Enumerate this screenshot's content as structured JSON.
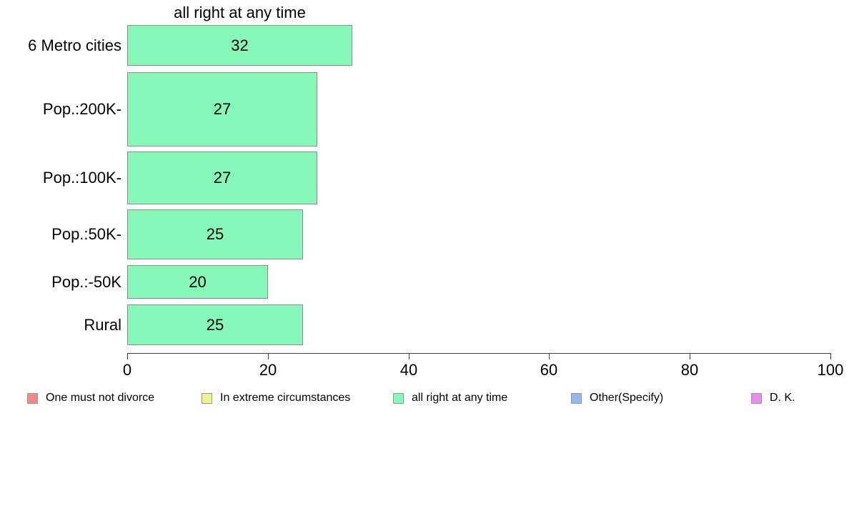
{
  "chart_data": {
    "type": "bar",
    "orientation": "horizontal",
    "title": "all right at any time",
    "categories": [
      "6 Metro cities",
      "Pop.:200K-",
      "Pop.:100K-",
      "Pop.:50K-",
      "Pop.:-50K",
      "Rural"
    ],
    "values": [
      32,
      27,
      27,
      25,
      20,
      25
    ],
    "value_labels": [
      "32",
      "27",
      "27",
      "25",
      "20",
      "25"
    ],
    "xlim": [
      0,
      100
    ],
    "x_ticks": [
      0,
      20,
      40,
      60,
      80,
      100
    ],
    "grid": false,
    "bar_color": "#85F7B6",
    "bar_border_color": "#8f8f8f",
    "bar_thickness_px": [
      57,
      104,
      74,
      70,
      47,
      57
    ],
    "legend_position": "bottom",
    "legend": [
      {
        "label": "One must not divorce",
        "color": "#F28888"
      },
      {
        "label": "In extreme circumstances",
        "color": "#EDF28D"
      },
      {
        "label": "all right at any time",
        "color": "#85F7B6"
      },
      {
        "label": "Other(Specify)",
        "color": "#8FB9F5"
      },
      {
        "label": "D. K.",
        "color": "#E78BF0"
      }
    ]
  }
}
